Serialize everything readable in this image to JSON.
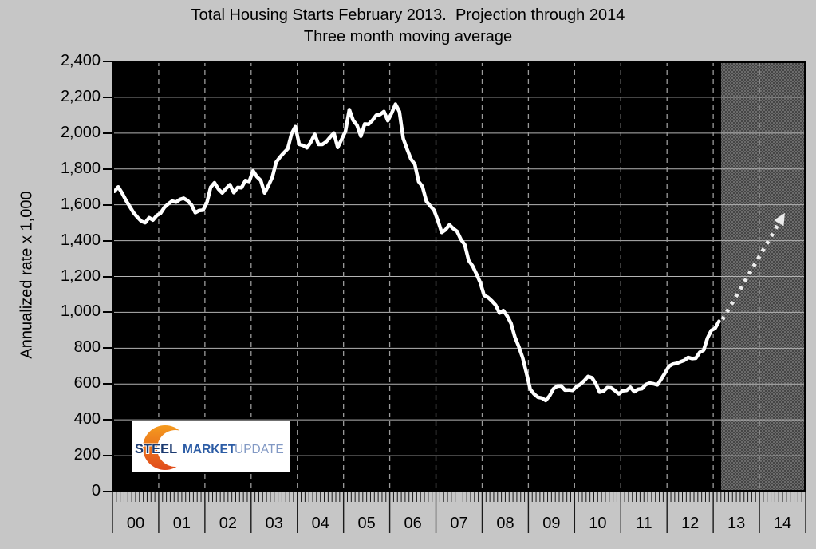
{
  "title": "Total Housing Starts February 2013.  Projection through 2014",
  "subtitle": "Three month moving average",
  "y_axis": {
    "title": "Annualized rate x 1,000",
    "tick_labels": [
      "2,400",
      "2,200",
      "2,000",
      "1,800",
      "1,600",
      "1,400",
      "1,200",
      "1,000",
      "800",
      "600",
      "400",
      "200",
      "0"
    ],
    "tick_values": [
      2400,
      2200,
      2000,
      1800,
      1600,
      1400,
      1200,
      1000,
      800,
      600,
      400,
      200,
      0
    ]
  },
  "x_axis": {
    "year_labels": [
      "00",
      "01",
      "02",
      "03",
      "04",
      "05",
      "06",
      "07",
      "08",
      "09",
      "10",
      "11",
      "12",
      "13",
      "14"
    ],
    "minor_ticks_per_year": 12
  },
  "logo": {
    "word1": "STEEL",
    "word2": "MARKET",
    "word3": "UPDATE"
  },
  "colors": {
    "page_background": "#c6c6c6",
    "plot_background": "#000000",
    "data_line": "#ffffff",
    "projection_arrow": "#ececec",
    "grid_horizontal": "#b4b4b4",
    "grid_vertical_dashed": "#9a9a9a",
    "projection_fill_dark": "#454545",
    "projection_fill_light": "#6c6c6c",
    "logo_steel_blue": "#1b3a70",
    "logo_market_blue": "#2c5ca5",
    "logo_update_blue": "#8299c4",
    "logo_crescent_top": "#f59b1e",
    "logo_crescent_bottom": "#e04a1c"
  },
  "chart_data": {
    "type": "line",
    "title": "Total Housing Starts February 2013.  Projection through 2014",
    "subtitle": "Three month moving average",
    "ylabel": "Annualized rate x 1,000",
    "ylim": [
      0,
      2400
    ],
    "y_tick_step": 200,
    "xlim_years": [
      2000,
      2015
    ],
    "grid": "horizontal solid, vertical dashed at year boundaries",
    "series": [
      {
        "name": "Total housing starts, three month moving average (annualized rate x 1,000)",
        "start_month": "2000-01",
        "end_month": "2013-02",
        "monthly_values": [
          1675,
          1700,
          1665,
          1625,
          1590,
          1555,
          1530,
          1508,
          1500,
          1528,
          1515,
          1540,
          1553,
          1586,
          1605,
          1621,
          1615,
          1630,
          1637,
          1624,
          1600,
          1556,
          1568,
          1570,
          1611,
          1698,
          1723,
          1688,
          1666,
          1691,
          1712,
          1668,
          1697,
          1695,
          1735,
          1730,
          1790,
          1757,
          1736,
          1666,
          1707,
          1754,
          1838,
          1866,
          1890,
          1913,
          1996,
          2036,
          1938,
          1931,
          1918,
          1949,
          1994,
          1937,
          1937,
          1951,
          1977,
          2000,
          1920,
          1965,
          2010,
          2131,
          2072,
          2044,
          1983,
          2051,
          2049,
          2072,
          2100,
          2104,
          2121,
          2069,
          2112,
          2162,
          2120,
          1970,
          1911,
          1855,
          1827,
          1730,
          1702,
          1620,
          1594,
          1570,
          1513,
          1446,
          1461,
          1488,
          1467,
          1451,
          1406,
          1377,
          1289,
          1259,
          1215,
          1166,
          1095,
          1084,
          1064,
          1040,
          996,
          1010,
          980,
          938,
          862,
          810,
          747,
          661,
          570,
          544,
          526,
          522,
          508,
          534,
          573,
          588,
          589,
          566,
          567,
          564,
          585,
          598,
          618,
          642,
          635,
          602,
          555,
          560,
          580,
          579,
          563,
          545,
          562,
          564,
          582,
          557,
          571,
          574,
          597,
          605,
          601,
          595,
          628,
          662,
          699,
          711,
          715,
          724,
          732,
          748,
          742,
          744,
          777,
          789,
          856,
          899,
          911,
          950
        ]
      }
    ],
    "projection": {
      "style": "dotted white arrow",
      "from": {
        "year_frac": 2013.2,
        "value": 960
      },
      "to": {
        "year_frac": 2014.55,
        "value": 1555
      }
    },
    "shaded_projection_region": {
      "from_year_frac": 2013.17,
      "to_year_frac": 2015.0
    }
  }
}
